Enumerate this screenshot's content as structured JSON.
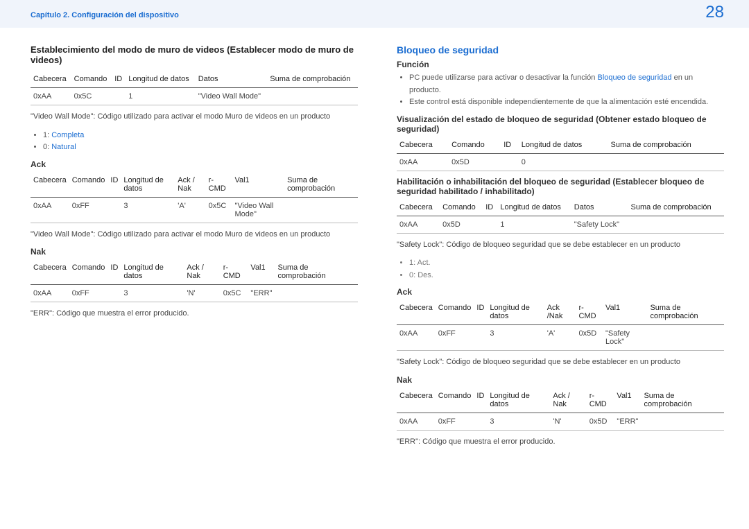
{
  "header": {
    "breadcrumb": "Capítulo 2. Configuración del dispositivo",
    "page_number": "28"
  },
  "left": {
    "title": "Establecimiento del modo de muro de videos (Establecer modo de muro de videos)",
    "table1": {
      "headers": [
        "Cabecera",
        "Comando",
        "ID",
        "Longitud de datos",
        "Datos",
        "Suma de comprobación"
      ],
      "row": [
        "0xAA",
        "0x5C",
        "",
        "1",
        "\"Video Wall Mode\"",
        ""
      ]
    },
    "note1": "\"Video Wall Mode\": Código utilizado para activar el modo Muro de videos en un producto",
    "bullets1": [
      {
        "prefix": "1: ",
        "value": "Completa"
      },
      {
        "prefix": "0: ",
        "value": "Natural"
      }
    ],
    "ack_label": "Ack",
    "table_ack": {
      "headers": [
        "Cabecera",
        "Comando",
        "ID",
        "Longitud de datos",
        "Ack / Nak",
        "r-CMD",
        "Val1",
        "Suma de comprobación"
      ],
      "row": [
        "0xAA",
        "0xFF",
        "",
        "3",
        "'A'",
        "0x5C",
        "\"Video Wall Mode\"",
        ""
      ]
    },
    "note2": "\"Video Wall Mode\": Código utilizado para activar el modo Muro de videos en un producto",
    "nak_label": "Nak",
    "table_nak": {
      "headers": [
        "Cabecera",
        "Comando",
        "ID",
        "Longitud de datos",
        "Ack / Nak",
        "r-CMD",
        "Val1",
        "Suma de comprobación"
      ],
      "row": [
        "0xAA",
        "0xFF",
        "",
        "3",
        "'N'",
        "0x5C",
        "\"ERR\"",
        ""
      ]
    },
    "note3": "\"ERR\": Código que muestra el error producido."
  },
  "right": {
    "title": "Bloqueo de seguridad",
    "func_label": "Función",
    "func_bullets": [
      {
        "pre": "PC puede utilizarse para activar o desactivar la función ",
        "link": "Bloqueo de seguridad",
        "post": " en un producto."
      },
      {
        "pre": "Este control está disponible independientemente de que la alimentación esté encendida.",
        "link": "",
        "post": ""
      }
    ],
    "sub1": "Visualización del estado de bloqueo de seguridad (Obtener estado bloqueo de seguridad)",
    "tableA": {
      "headers": [
        "Cabecera",
        "Comando",
        "ID",
        "Longitud de datos",
        "Suma de comprobación"
      ],
      "row": [
        "0xAA",
        "0x5D",
        "",
        "0",
        ""
      ]
    },
    "sub2": "Habilitación o inhabilitación del bloqueo de seguridad (Establecer bloqueo de seguridad habilitado / inhabilitado)",
    "tableB": {
      "headers": [
        "Cabecera",
        "Comando",
        "ID",
        "Longitud de datos",
        "Datos",
        "Suma de comprobación"
      ],
      "row": [
        "0xAA",
        "0x5D",
        "",
        "1",
        "\"Safety Lock\"",
        ""
      ]
    },
    "noteB": "\"Safety Lock\": Código de bloqueo seguridad que se debe establecer en un producto",
    "bulletsB": [
      "1: Act.",
      "0: Des."
    ],
    "ack_label": "Ack",
    "table_ack": {
      "headers": [
        "Cabecera",
        "Comando",
        "ID",
        "Longitud de datos",
        "Ack /Nak",
        "r-CMD",
        "Val1",
        "Suma de comprobación"
      ],
      "row": [
        "0xAA",
        "0xFF",
        "",
        "3",
        "'A'",
        "0x5D",
        "\"Safety Lock\"",
        ""
      ]
    },
    "noteC": "\"Safety Lock\": Código de bloqueo seguridad que se debe establecer en un producto",
    "nak_label": "Nak",
    "table_nak": {
      "headers": [
        "Cabecera",
        "Comando",
        "ID",
        "Longitud de datos",
        "Ack / Nak",
        "r-CMD",
        "Val1",
        "Suma de comprobación"
      ],
      "row": [
        "0xAA",
        "0xFF",
        "",
        "3",
        "'N'",
        "0x5D",
        "\"ERR\"",
        ""
      ]
    },
    "noteD": "\"ERR\": Código que muestra el error producido."
  },
  "colors": {
    "accent": "#1b6dd1",
    "header_bg": "#f0f4fb",
    "rule": "#555"
  }
}
